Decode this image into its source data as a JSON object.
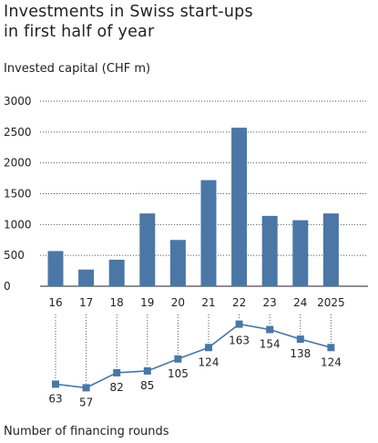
{
  "title_line1": "Investments in Swiss start-ups",
  "title_line2": "in first half of year",
  "chart_data": [
    {
      "type": "bar",
      "title": "Investments in Swiss start-ups in first half of year",
      "ylabel": "Invested capital (CHF m)",
      "categories": [
        "16",
        "17",
        "18",
        "19",
        "20",
        "21",
        "22",
        "23",
        "24",
        "2025"
      ],
      "values": [
        570,
        270,
        430,
        1180,
        750,
        1720,
        2570,
        1140,
        1070,
        1180
      ],
      "ylim": [
        0,
        3000
      ],
      "yticks": [
        0,
        500,
        1000,
        1500,
        2000,
        2500,
        3000
      ],
      "grid": true,
      "color": "#4a77a6"
    },
    {
      "type": "line",
      "title": "Number of financing rounds",
      "categories": [
        "16",
        "17",
        "18",
        "19",
        "20",
        "21",
        "22",
        "23",
        "24",
        "2025"
      ],
      "values": [
        63,
        57,
        82,
        85,
        105,
        124,
        163,
        154,
        138,
        124
      ],
      "color": "#4a77a6"
    }
  ]
}
